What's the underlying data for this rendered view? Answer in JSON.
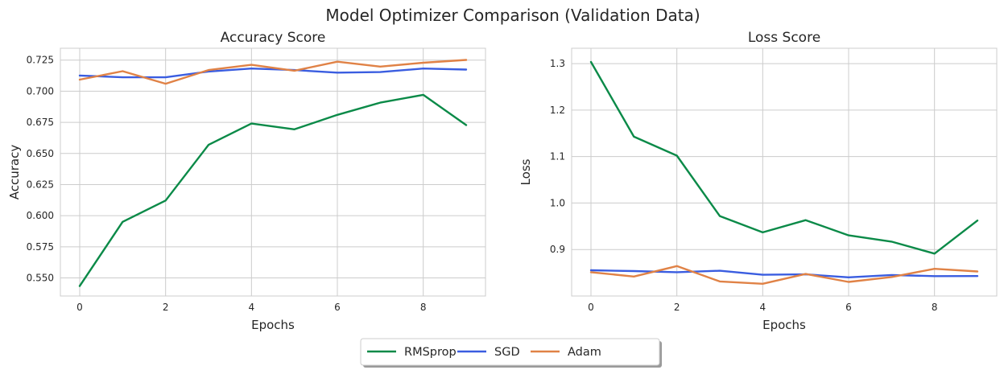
{
  "figure": {
    "title": "Model Optimizer Comparison (Validation Data)"
  },
  "colors": {
    "RMSprop": "#0b8a48",
    "SGD": "#3a5de0",
    "Adam": "#e08246",
    "grid": "#cccccc"
  },
  "legend": {
    "placement": "bottom-center",
    "entries": [
      "RMSprop",
      "SGD",
      "Adam"
    ]
  },
  "chart_data": [
    {
      "type": "line",
      "title": "Accuracy Score",
      "xlabel": "Epochs",
      "ylabel": "Accuracy",
      "xlim": [
        -0.45,
        9.45
      ],
      "ylim": [
        0.5355,
        0.7345
      ],
      "xticks": [
        0,
        2,
        4,
        6,
        8
      ],
      "xtick_labels": [
        "0",
        "2",
        "4",
        "6",
        "8"
      ],
      "yticks": [
        0.55,
        0.575,
        0.6,
        0.625,
        0.65,
        0.675,
        0.7,
        0.725
      ],
      "ytick_labels": [
        "0.550",
        "0.575",
        "0.600",
        "0.625",
        "0.650",
        "0.675",
        "0.700",
        "0.725"
      ],
      "grid": true,
      "x": [
        0,
        1,
        2,
        3,
        4,
        5,
        6,
        7,
        8,
        9
      ],
      "series": [
        {
          "name": "RMSprop",
          "values": [
            0.5435,
            0.5951,
            0.6122,
            0.6569,
            0.674,
            0.6694,
            0.681,
            0.6908,
            0.6971,
            0.6728
          ]
        },
        {
          "name": "SGD",
          "values": [
            0.7126,
            0.7112,
            0.7112,
            0.7158,
            0.7182,
            0.717,
            0.7149,
            0.7154,
            0.7182,
            0.7174
          ]
        },
        {
          "name": "Adam",
          "values": [
            0.7093,
            0.7161,
            0.706,
            0.717,
            0.7212,
            0.7165,
            0.7237,
            0.7198,
            0.7229,
            0.7251
          ]
        }
      ]
    },
    {
      "type": "line",
      "title": "Loss Score",
      "xlabel": "Epochs",
      "ylabel": "Loss",
      "xlim": [
        -0.45,
        9.45
      ],
      "ylim": [
        0.8,
        1.333
      ],
      "xticks": [
        0,
        2,
        4,
        6,
        8
      ],
      "xtick_labels": [
        "0",
        "2",
        "4",
        "6",
        "8"
      ],
      "yticks": [
        0.9,
        1.0,
        1.1,
        1.2,
        1.3
      ],
      "ytick_labels": [
        "0.9",
        "1.0",
        "1.1",
        "1.2",
        "1.3"
      ],
      "grid": true,
      "x": [
        0,
        1,
        2,
        3,
        4,
        5,
        6,
        7,
        8,
        9
      ],
      "series": [
        {
          "name": "RMSprop",
          "values": [
            1.3035,
            1.1429,
            1.1019,
            0.9721,
            0.9369,
            0.9632,
            0.9304,
            0.917,
            0.8912,
            0.9624
          ]
        },
        {
          "name": "SGD",
          "values": [
            0.8553,
            0.8536,
            0.8512,
            0.8544,
            0.8456,
            0.8465,
            0.8401,
            0.8451,
            0.8427,
            0.843
          ]
        },
        {
          "name": "Adam",
          "values": [
            0.8512,
            0.8418,
            0.8643,
            0.8313,
            0.8263,
            0.8474,
            0.8303,
            0.8409,
            0.8585,
            0.8527
          ]
        }
      ]
    }
  ]
}
